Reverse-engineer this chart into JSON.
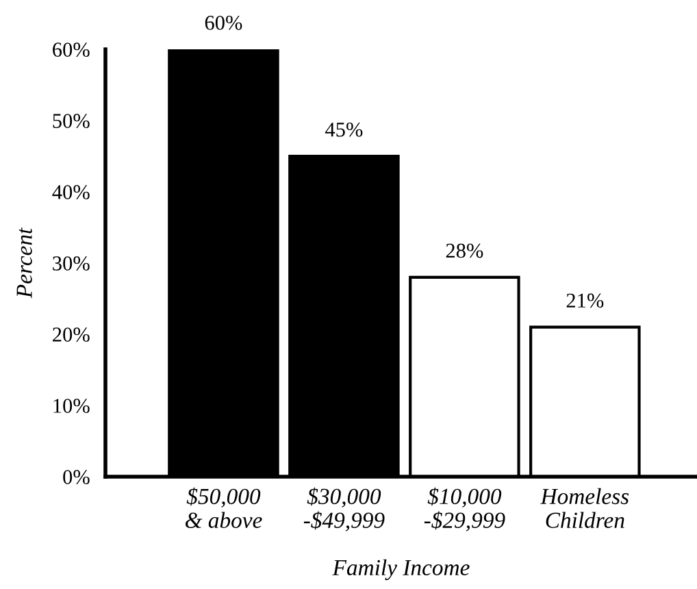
{
  "chart_data": {
    "type": "bar",
    "xlabel": "Family Income",
    "ylabel": "Percent",
    "categories": [
      "$50,000\n& above",
      "$30,000\n-$49,999",
      "$10,000\n-$29,999",
      "Homeless\nChildren"
    ],
    "values": [
      60,
      45,
      28,
      21
    ],
    "colors": [
      "#000000",
      "#000000",
      "#ffffff",
      "#ffffff"
    ],
    "value_labels": [
      "60%",
      "45%",
      "28%",
      "21%"
    ],
    "ylim": [
      0,
      60
    ],
    "yticks": [
      {
        "value": 0,
        "label": "0%"
      },
      {
        "value": 10,
        "label": "10%"
      },
      {
        "value": 20,
        "label": "20%"
      },
      {
        "value": 30,
        "label": "30%"
      },
      {
        "value": 40,
        "label": "40%"
      },
      {
        "value": 50,
        "label": "50%"
      },
      {
        "value": 60,
        "label": "60%"
      }
    ],
    "grid": false
  }
}
